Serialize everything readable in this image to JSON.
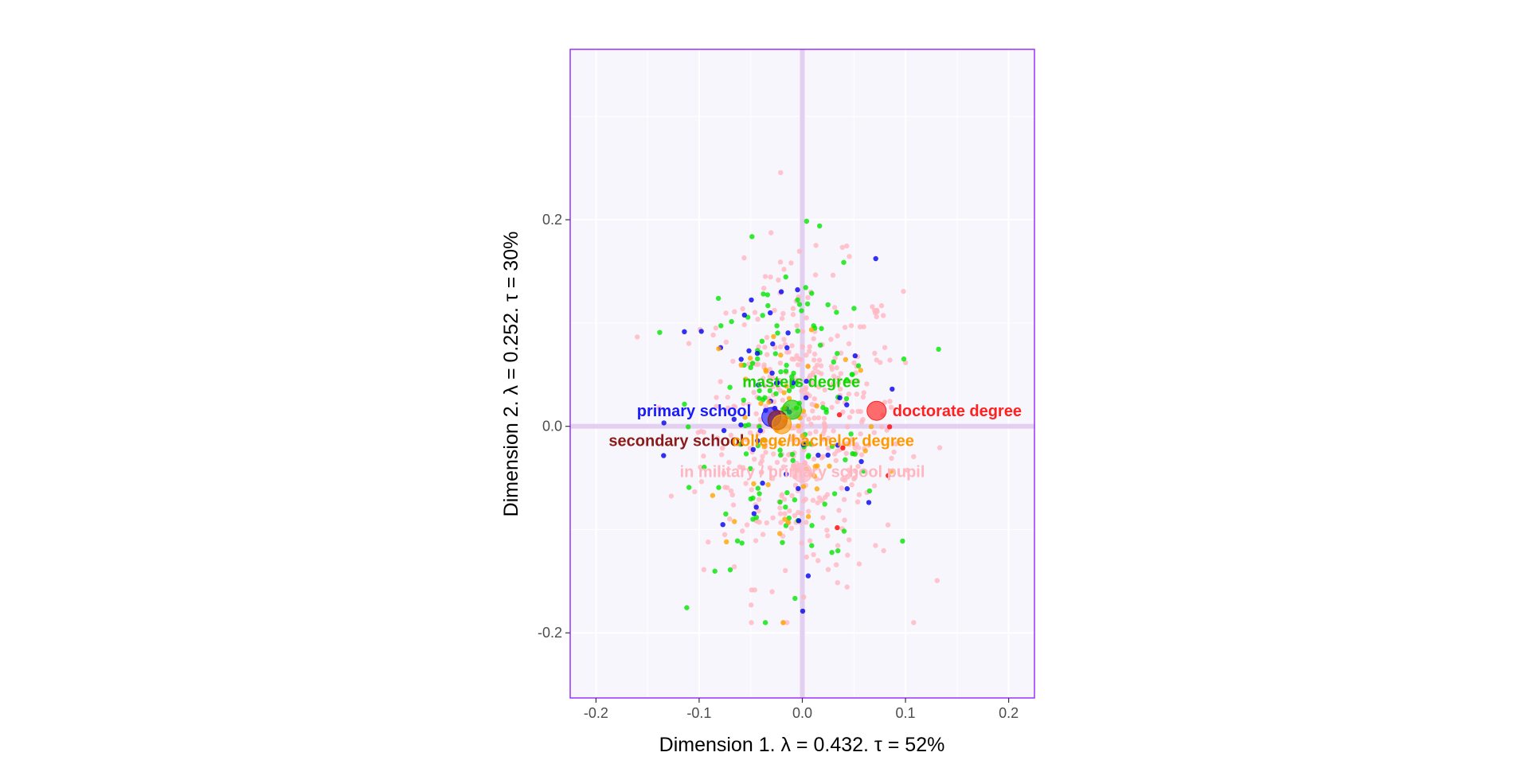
{
  "chart_data": {
    "type": "scatter",
    "xlabel": "Dimension 1.   λ = 0.432.  τ = 52%",
    "ylabel": "Dimension 2.   λ = 0.252.  τ = 30%",
    "xlim": [
      -0.225,
      0.225
    ],
    "ylim": [
      -0.263,
      0.365
    ],
    "x_ticks": [
      -0.2,
      -0.1,
      0.0,
      0.1,
      0.2
    ],
    "x_tick_labels": [
      "-0.2",
      "-0.1",
      "0.0",
      "0.1",
      "0.2"
    ],
    "y_ticks": [
      -0.2,
      0.0,
      0.2
    ],
    "y_tick_labels": [
      "-0.2",
      "0.0",
      "0.2"
    ],
    "grid": true,
    "legend": "none",
    "colors": {
      "panel_background": "#f8f6fd",
      "panel_border": "#9b30ff",
      "grid": "#ffffff",
      "origin_lines": "#e3cff0"
    },
    "category_points": [
      {
        "label": "masters degree",
        "x": -0.01,
        "y": 0.016,
        "color": "#16d400",
        "label_x": -0.001,
        "label_y": 0.042
      },
      {
        "label": "primary school",
        "x": -0.03,
        "y": 0.009,
        "color": "#1a1aff",
        "label_x": -0.105,
        "label_y": 0.014
      },
      {
        "label": "doctorate degree",
        "x": 0.072,
        "y": 0.015,
        "color": "#ff2020",
        "label_x": 0.15,
        "label_y": 0.014
      },
      {
        "label": "secondary school",
        "x": -0.024,
        "y": 0.006,
        "color": "#8b1a1a",
        "label_x": -0.122,
        "label_y": -0.015
      },
      {
        "label": "college/bachelor degree",
        "x": -0.02,
        "y": 0.002,
        "color": "#ff9900",
        "label_x": 0.02,
        "label_y": -0.015
      },
      {
        "label": "in military / primary school pupil",
        "x": 0.0,
        "y": -0.045,
        "color": "#ffb6c1",
        "label_x": 0.0,
        "label_y": -0.045
      }
    ],
    "individuals": {
      "series": [
        {
          "color": "#ffb6c1",
          "count": 430,
          "sd_x": 0.048,
          "sd_y": 0.075,
          "cx": 0.0,
          "cy": 0.0
        },
        {
          "color": "#00e600",
          "count": 130,
          "sd_x": 0.045,
          "sd_y": 0.075,
          "cx": -0.01,
          "cy": 0.015
        },
        {
          "color": "#0000ee",
          "count": 55,
          "sd_x": 0.05,
          "sd_y": 0.08,
          "cx": -0.03,
          "cy": 0.0
        },
        {
          "color": "#ffa500",
          "count": 50,
          "sd_x": 0.045,
          "sd_y": 0.07,
          "cx": -0.01,
          "cy": 0.0
        },
        {
          "color": "#ff0000",
          "count": 5,
          "sd_x": 0.03,
          "sd_y": 0.06,
          "cx": 0.07,
          "cy": 0.0
        }
      ]
    }
  }
}
